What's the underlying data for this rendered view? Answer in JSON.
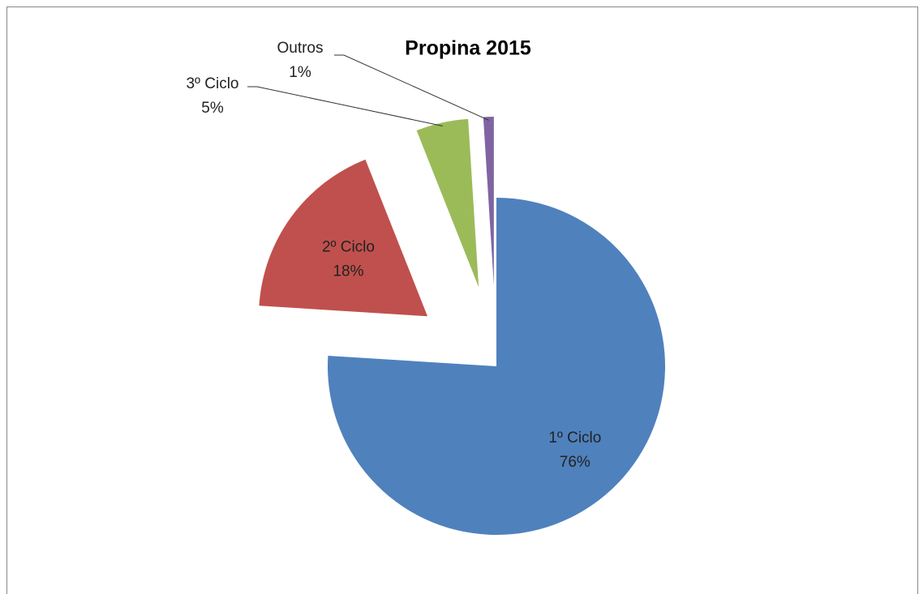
{
  "chart_data": {
    "type": "pie",
    "title": "Propina 2015",
    "categories": [
      "1º Ciclo",
      "2º Ciclo",
      "3º Ciclo",
      "Outros"
    ],
    "values": [
      76,
      18,
      5,
      1
    ],
    "value_labels": [
      "76%",
      "18%",
      "5%",
      "1%"
    ],
    "colors": [
      "#4f81bd",
      "#c0504d",
      "#9bbb59",
      "#8064a2"
    ]
  }
}
